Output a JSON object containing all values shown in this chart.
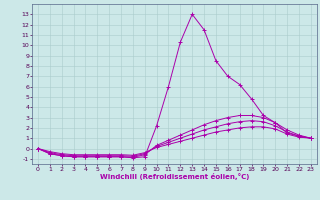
{
  "xlabel": "Windchill (Refroidissement éolien,°C)",
  "bg_color": "#cce8e8",
  "line_color": "#aa00aa",
  "grid_color": "#aacccc",
  "xlim": [
    -0.5,
    23.5
  ],
  "ylim": [
    -1.5,
    14.0
  ],
  "xticks": [
    0,
    1,
    2,
    3,
    4,
    5,
    6,
    7,
    8,
    9,
    10,
    11,
    12,
    13,
    14,
    15,
    16,
    17,
    18,
    19,
    20,
    21,
    22,
    23
  ],
  "yticks": [
    -1,
    0,
    1,
    2,
    3,
    4,
    5,
    6,
    7,
    8,
    9,
    10,
    11,
    12,
    13
  ],
  "lines": [
    {
      "x": [
        0,
        1,
        2,
        3,
        4,
        5,
        6,
        7,
        8,
        9,
        10,
        11,
        12,
        13,
        14,
        15,
        16,
        17,
        18,
        19,
        20,
        21,
        22,
        23
      ],
      "y": [
        0,
        -0.5,
        -0.7,
        -0.8,
        -0.8,
        -0.8,
        -0.8,
        -0.8,
        -0.9,
        -0.8,
        2.2,
        6.0,
        10.3,
        13.0,
        11.5,
        8.5,
        7.0,
        6.2,
        4.8,
        3.2,
        2.5,
        1.5,
        1.2,
        1.0
      ]
    },
    {
      "x": [
        0,
        1,
        2,
        3,
        4,
        5,
        6,
        7,
        8,
        9,
        10,
        11,
        12,
        13,
        14,
        15,
        16,
        17,
        18,
        19,
        20,
        21,
        22,
        23
      ],
      "y": [
        0,
        -0.5,
        -0.7,
        -0.8,
        -0.8,
        -0.8,
        -0.8,
        -0.8,
        -0.85,
        -0.6,
        0.3,
        0.8,
        1.3,
        1.8,
        2.3,
        2.7,
        3.0,
        3.2,
        3.2,
        3.0,
        2.5,
        1.8,
        1.3,
        1.0
      ]
    },
    {
      "x": [
        0,
        1,
        2,
        3,
        4,
        5,
        6,
        7,
        8,
        9,
        10,
        11,
        12,
        13,
        14,
        15,
        16,
        17,
        18,
        19,
        20,
        21,
        22,
        23
      ],
      "y": [
        0,
        -0.4,
        -0.6,
        -0.7,
        -0.7,
        -0.7,
        -0.7,
        -0.7,
        -0.75,
        -0.5,
        0.2,
        0.6,
        1.0,
        1.4,
        1.8,
        2.1,
        2.4,
        2.6,
        2.7,
        2.6,
        2.2,
        1.6,
        1.2,
        1.0
      ]
    },
    {
      "x": [
        0,
        1,
        2,
        3,
        4,
        5,
        6,
        7,
        8,
        9,
        10,
        11,
        12,
        13,
        14,
        15,
        16,
        17,
        18,
        19,
        20,
        21,
        22,
        23
      ],
      "y": [
        0,
        -0.3,
        -0.5,
        -0.6,
        -0.6,
        -0.6,
        -0.6,
        -0.6,
        -0.65,
        -0.4,
        0.1,
        0.4,
        0.7,
        1.0,
        1.3,
        1.6,
        1.8,
        2.0,
        2.1,
        2.1,
        1.9,
        1.4,
        1.1,
        1.0
      ]
    }
  ]
}
